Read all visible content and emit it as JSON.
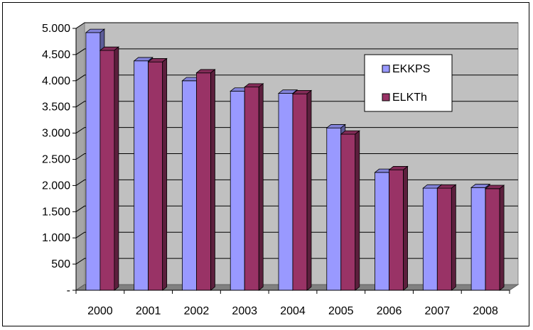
{
  "chart_data": {
    "type": "bar",
    "categories": [
      "2000",
      "2001",
      "2002",
      "2003",
      "2004",
      "2005",
      "2006",
      "2007",
      "2008"
    ],
    "series": [
      {
        "name": "EKKPS",
        "values": [
          4920,
          4380,
          4000,
          3800,
          3760,
          3100,
          2250,
          1950,
          1960
        ],
        "color": "#9999ff"
      },
      {
        "name": "ELKTh",
        "values": [
          4580,
          4360,
          4150,
          3880,
          3750,
          2980,
          2300,
          1950,
          1940
        ],
        "color": "#993366"
      }
    ],
    "yticks": [
      "-",
      "500",
      "1.000",
      "1.500",
      "2.000",
      "2.500",
      "3.000",
      "3.500",
      "4.000",
      "4.500",
      "5.000"
    ],
    "ylim": [
      0,
      5000
    ],
    "grid": true,
    "legend_position": "top-right",
    "background_color": "#c0c0c0",
    "title": "",
    "xlabel": "",
    "ylabel": ""
  }
}
